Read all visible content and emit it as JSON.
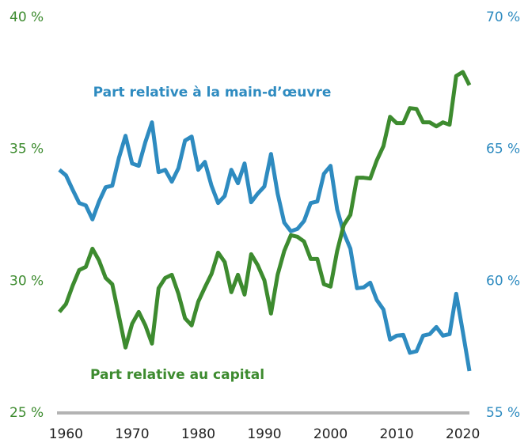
{
  "chart_data": {
    "type": "line",
    "x": [
      1959,
      1960,
      1961,
      1962,
      1963,
      1964,
      1965,
      1966,
      1967,
      1968,
      1969,
      1970,
      1971,
      1972,
      1973,
      1974,
      1975,
      1976,
      1977,
      1978,
      1979,
      1980,
      1981,
      1982,
      1983,
      1984,
      1985,
      1986,
      1987,
      1988,
      1989,
      1990,
      1991,
      1992,
      1993,
      1994,
      1995,
      1996,
      1997,
      1998,
      1999,
      2000,
      2001,
      2002,
      2003,
      2004,
      2005,
      2006,
      2007,
      2008,
      2009,
      2010,
      2011,
      2012,
      2013,
      2014,
      2015,
      2016,
      2017,
      2018,
      2019,
      2020,
      2021
    ],
    "xlim": [
      1959,
      2021
    ],
    "xticks": [
      1960,
      1970,
      1980,
      1990,
      2000,
      2010,
      2020
    ],
    "ylim": [
      25,
      40
    ],
    "yticks": [
      {
        "value": 25,
        "label": "25 %"
      },
      {
        "value": 30,
        "label": "30 %"
      },
      {
        "value": 35,
        "label": "35 %"
      },
      {
        "value": 40,
        "label": "40 %"
      }
    ],
    "y2lim": [
      55,
      70
    ],
    "y2ticks": [
      {
        "value": 55,
        "label": "55 %"
      },
      {
        "value": 60,
        "label": "60 %"
      },
      {
        "value": 65,
        "label": "65 %"
      },
      {
        "value": 70,
        "label": "70 %"
      }
    ],
    "series": [
      {
        "name": "Part relative à la main-d’œuvre",
        "color": "#2e8bc0",
        "axis": "y2",
        "values": [
          64.22,
          64.01,
          63.47,
          62.96,
          62.87,
          62.34,
          63.02,
          63.56,
          63.62,
          64.67,
          65.51,
          64.46,
          64.37,
          65.27,
          66.02,
          64.13,
          64.22,
          63.77,
          64.28,
          65.33,
          65.48,
          64.22,
          64.52,
          63.62,
          62.96,
          63.23,
          64.22,
          63.71,
          64.46,
          62.99,
          63.32,
          63.59,
          64.82,
          63.32,
          62.22,
          61.89,
          61.98,
          62.28,
          62.96,
          63.02,
          64.07,
          64.37,
          62.72,
          61.83,
          61.23,
          59.73,
          59.76,
          59.94,
          59.28,
          58.92,
          57.78,
          57.93,
          57.96,
          57.28,
          57.34,
          57.93,
          57.99,
          58.26,
          57.93,
          57.99,
          59.52,
          58.08,
          56.59
        ]
      },
      {
        "name": "Part relative au capital",
        "color": "#3d8b2f",
        "values": [
          28.83,
          29.13,
          29.82,
          30.42,
          30.54,
          31.23,
          30.78,
          30.12,
          29.88,
          28.68,
          27.48,
          28.38,
          28.83,
          28.32,
          27.63,
          29.73,
          30.12,
          30.24,
          29.52,
          28.59,
          28.32,
          29.22,
          29.76,
          30.27,
          31.08,
          30.72,
          29.58,
          30.24,
          29.49,
          31.02,
          30.6,
          30.03,
          28.77,
          30.24,
          31.14,
          31.74,
          31.68,
          31.5,
          30.84,
          30.84,
          29.88,
          29.79,
          31.14,
          32.13,
          32.51,
          33.92,
          33.92,
          33.89,
          34.58,
          35.12,
          36.23,
          35.99,
          35.99,
          36.56,
          36.53,
          36.02,
          36.02,
          35.87,
          36.02,
          35.93,
          37.78,
          37.93,
          37.43
        ]
      }
    ]
  }
}
